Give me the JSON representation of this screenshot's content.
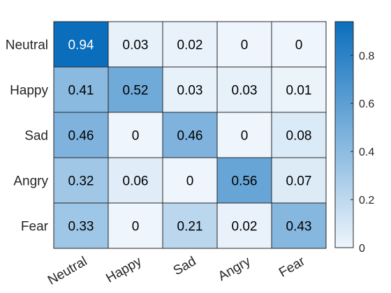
{
  "chart_data": {
    "type": "heatmap",
    "rows": [
      "Neutral",
      "Happy",
      "Sad",
      "Angry",
      "Fear"
    ],
    "columns": [
      "Neutral",
      "Happy",
      "Sad",
      "Angry",
      "Fear"
    ],
    "values": [
      [
        0.94,
        0.03,
        0.02,
        0,
        0
      ],
      [
        0.41,
        0.52,
        0.03,
        0.03,
        0.01
      ],
      [
        0.46,
        0,
        0.46,
        0,
        0.08
      ],
      [
        0.32,
        0.06,
        0,
        0.56,
        0.07
      ],
      [
        0.33,
        0,
        0.21,
        0.02,
        0.43
      ]
    ],
    "color_range": [
      0,
      0.94
    ],
    "colorbar": {
      "ticks": [
        0,
        0.2,
        0.4,
        0.6,
        0.8
      ],
      "tick_labels": [
        "0",
        "0.2",
        "0.4",
        "0.6",
        "0.8"
      ],
      "placement": "right"
    },
    "colors": {
      "low": "#eef5fc",
      "high": "#0b6ebd",
      "grid": "#262626"
    }
  }
}
